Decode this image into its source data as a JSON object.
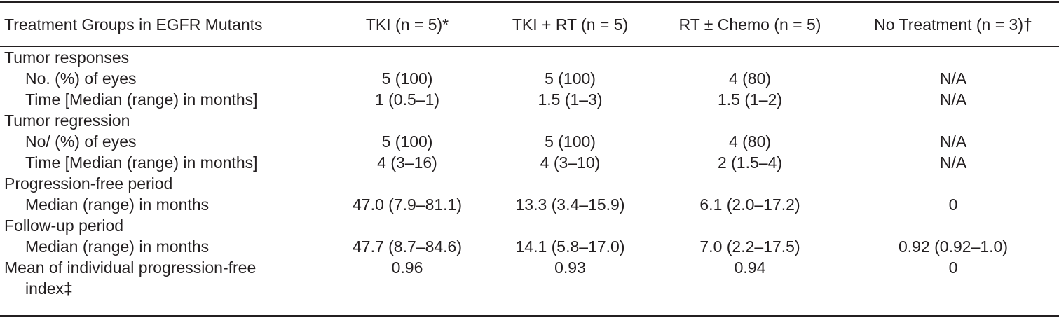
{
  "table": {
    "headers": [
      "Treatment Groups in EGFR Mutants",
      "TKI (n = 5)*",
      "TKI + RT (n = 5)",
      "RT ± Chemo (n = 5)",
      "No Treatment (n = 3)†"
    ],
    "sections": [
      {
        "label": "Tumor responses",
        "rows": [
          {
            "label": "No. (%) of eyes",
            "values": [
              "5 (100)",
              "5 (100)",
              "4 (80)",
              "N/A"
            ]
          },
          {
            "label": "Time [Median (range) in months]",
            "values": [
              "1 (0.5–1)",
              "1.5 (1–3)",
              "1.5 (1–2)",
              "N/A"
            ]
          }
        ]
      },
      {
        "label": "Tumor regression",
        "rows": [
          {
            "label": "No/ (%) of eyes",
            "values": [
              "5 (100)",
              "5 (100)",
              "4 (80)",
              "N/A"
            ]
          },
          {
            "label": "Time [Median (range) in months]",
            "values": [
              "4 (3–16)",
              "4 (3–10)",
              "2 (1.5–4)",
              "N/A"
            ]
          }
        ]
      },
      {
        "label": "Progression-free period",
        "rows": [
          {
            "label": "Median (range) in months",
            "values": [
              "47.0 (7.9–81.1)",
              "13.3 (3.4–15.9)",
              "6.1 (2.0–17.2)",
              "0"
            ]
          }
        ]
      },
      {
        "label": "Follow-up period",
        "rows": [
          {
            "label": "Median (range) in months",
            "values": [
              "47.7 (8.7–84.6)",
              "14.1 (5.8–17.0)",
              "7.0 (2.2–17.5)",
              "0.92 (0.92–1.0)"
            ]
          }
        ]
      }
    ],
    "final_row": {
      "label_line1": "Mean of individual progression-free",
      "label_line2": "index‡",
      "values": [
        "0.96",
        "0.93",
        "0.94",
        "0"
      ]
    }
  }
}
